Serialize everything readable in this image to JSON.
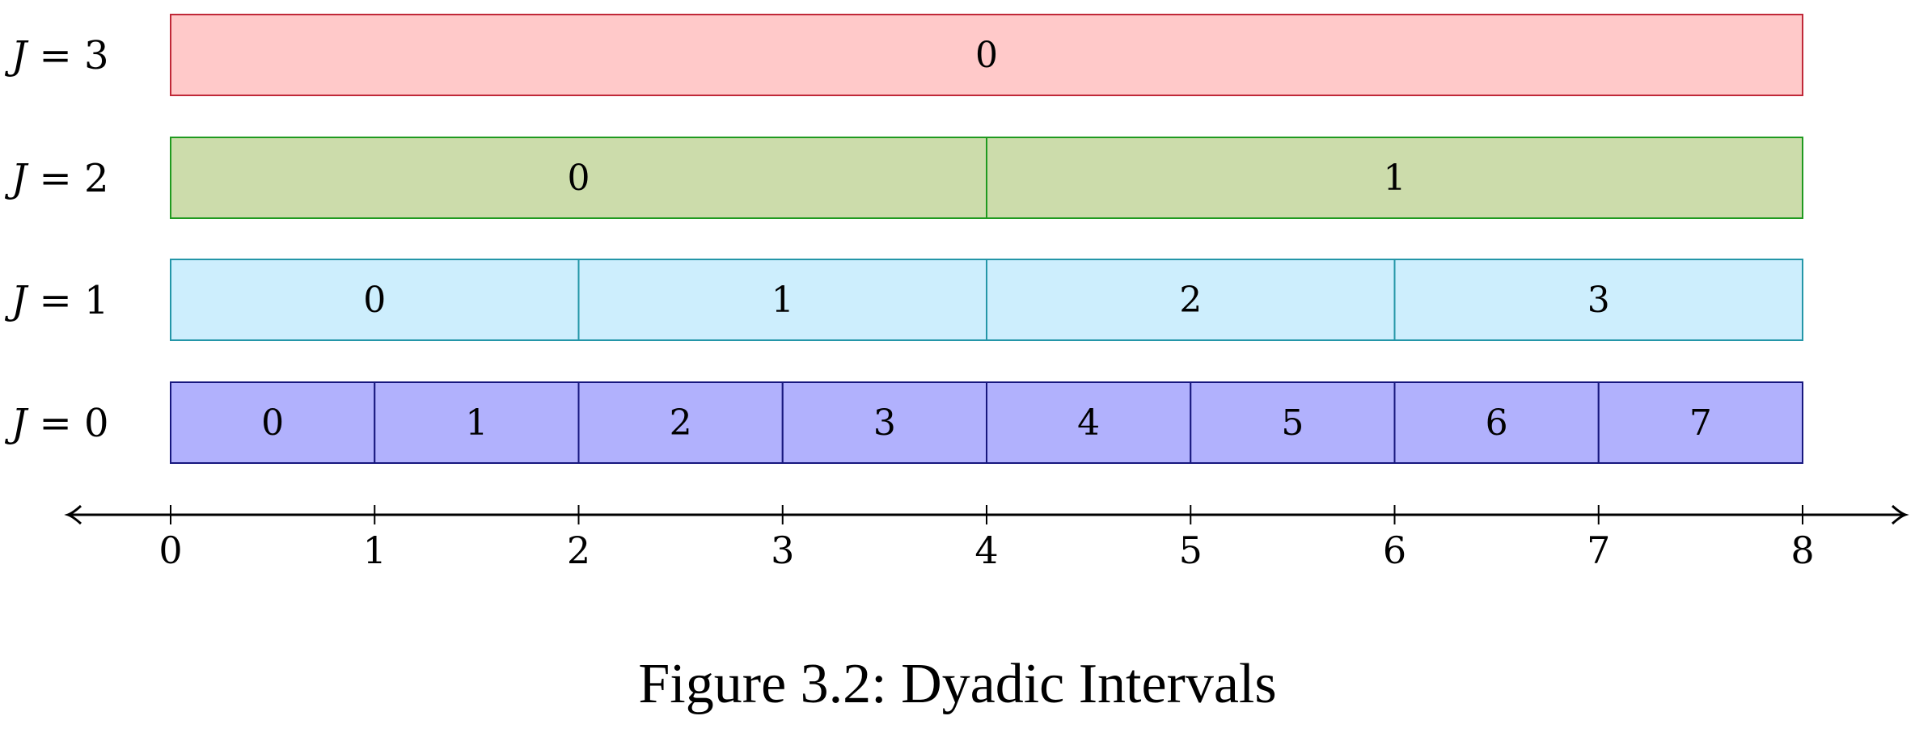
{
  "levels": [
    {
      "label": "J = 3",
      "var": "J",
      "rel": " = ",
      "value": "3",
      "colors": {
        "fill": "#ffc9c9",
        "stroke": "#c02838"
      },
      "intervals": [
        "0"
      ]
    },
    {
      "label": "J = 2",
      "var": "J",
      "rel": " = ",
      "value": "2",
      "colors": {
        "fill": "#ccdcab",
        "stroke": "#1f9a1f"
      },
      "intervals": [
        "0",
        "1"
      ]
    },
    {
      "label": "J = 1",
      "var": "J",
      "rel": " = ",
      "value": "1",
      "colors": {
        "fill": "#cdeefd",
        "stroke": "#2496a8"
      },
      "intervals": [
        "0",
        "1",
        "2",
        "3"
      ]
    },
    {
      "label": "J = 0",
      "var": "J",
      "rel": " = ",
      "value": "0",
      "colors": {
        "fill": "#b1b1fd",
        "stroke": "#17177e"
      },
      "intervals": [
        "0",
        "1",
        "2",
        "3",
        "4",
        "5",
        "6",
        "7"
      ]
    }
  ],
  "axis": {
    "min": 0,
    "max": 8,
    "ticks": [
      "0",
      "1",
      "2",
      "3",
      "4",
      "5",
      "6",
      "7",
      "8"
    ],
    "arrows": "both"
  },
  "caption": "Figure 3.2: Dyadic Intervals"
}
